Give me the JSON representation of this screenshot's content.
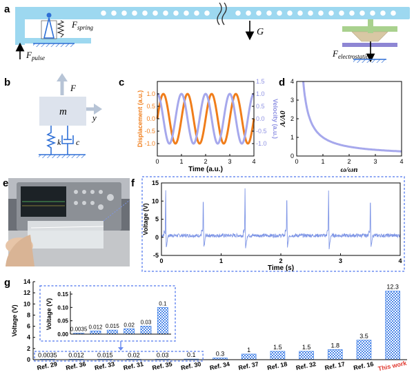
{
  "panels": {
    "a": {
      "letter": "a",
      "labels": {
        "spring_force": "F",
        "spring_sub": "spring",
        "gravity": "G",
        "pulse_force": "F",
        "pulse_sub": "pulse",
        "electro_force": "F",
        "electro_sub": "electrostatic"
      },
      "colors": {
        "beam": "#9dd8f0",
        "hole": "#ffffff",
        "green": "#a9d18e",
        "purple": "#8e86d4",
        "tan": "#d8c8a4"
      }
    },
    "b": {
      "letter": "b",
      "labels": {
        "force": "F",
        "mass": "m",
        "y": "y",
        "k": "k",
        "c": "c"
      },
      "colors": {
        "mass": "#dde3ed",
        "spring": "#2e6fd6",
        "arrow": "#b7c4d6"
      }
    },
    "c": {
      "letter": "c"
    },
    "d": {
      "letter": "d"
    },
    "e": {
      "letter": "e"
    },
    "f": {
      "letter": "f"
    },
    "g": {
      "letter": "g"
    }
  },
  "chart_data": [
    {
      "panel": "c",
      "type": "line",
      "xlabel": "Time (a.u.)",
      "ylabel": "Displacement (a.u.)",
      "y2label": "Velocity (a.u.)",
      "xlim": [
        0,
        4
      ],
      "ylim": [
        -1.5,
        1.5
      ],
      "y2lim": [
        -1.5,
        1.5
      ],
      "xticks": [
        0,
        1,
        2,
        3,
        4
      ],
      "yticks": [
        -1.0,
        -0.5,
        0.0,
        0.5,
        1.0
      ],
      "ytick_labels": [
        "-1.0",
        "-0.5",
        "0.0",
        "0.5",
        "1.0"
      ],
      "y2ticks": [
        -1.0,
        -0.5,
        0.0,
        0.5,
        1.0,
        1.5
      ],
      "y2tick_labels": [
        "-1.0",
        "-0.5",
        "0.0",
        "0.5",
        "1.0",
        "1.5"
      ],
      "series": [
        {
          "axis": "left",
          "function": "sin",
          "period": 1.0,
          "amplitude": 1.0,
          "phase": 0,
          "color": "#f07d1a"
        },
        {
          "axis": "right",
          "function": "cos",
          "period": 1.0,
          "amplitude": 1.0,
          "phase": 0,
          "color": "#a6a8ec"
        }
      ]
    },
    {
      "panel": "d",
      "type": "line",
      "xlabel": "ω/ωn",
      "ylabel": "A/A0",
      "xlim": [
        0,
        4
      ],
      "ylim": [
        0,
        4
      ],
      "xticks": [
        0,
        1,
        2,
        3,
        4
      ],
      "yticks": [
        0,
        1,
        2,
        3,
        4
      ],
      "series": [
        {
          "function": "1/x",
          "color": "#a6a8ec"
        }
      ]
    },
    {
      "panel": "f",
      "type": "line",
      "xlabel": "Time (s)",
      "ylabel": "Voltage (V)",
      "xlim": [
        0,
        4
      ],
      "ylim": [
        -5,
        15
      ],
      "xticks": [
        0,
        1,
        2,
        3,
        4
      ],
      "yticks": [
        -5,
        0,
        5,
        10,
        15
      ],
      "color": "#7f96e6",
      "baseline": 0.5,
      "noise": 0.5,
      "spikes": [
        {
          "t": 0.07,
          "v": 14.5
        },
        {
          "t": 0.7,
          "v": 12.7
        },
        {
          "t": 1.4,
          "v": 13.0
        },
        {
          "t": 2.1,
          "v": 13.3
        },
        {
          "t": 2.8,
          "v": 12.4
        },
        {
          "t": 3.5,
          "v": 12.4
        }
      ]
    },
    {
      "panel": "g",
      "type": "bar",
      "ylabel": "Voltage (V)",
      "ylim": [
        0,
        14
      ],
      "yticks": [
        0,
        2,
        4,
        6,
        8,
        10,
        12,
        14
      ],
      "categories": [
        "Ref. 29",
        "Ref. 36",
        "Ref. 33",
        "Ref. 31",
        "Ref. 35",
        "Ref. 30",
        "Ref. 34",
        "Ref. 37",
        "Ref. 18",
        "Ref. 32",
        "Ref. 17",
        "Ref. 16",
        "This work"
      ],
      "values": [
        0.0035,
        0.012,
        0.015,
        0.02,
        0.03,
        0.1,
        0.3,
        1,
        1.5,
        1.5,
        1.8,
        3.5,
        12.3
      ],
      "value_labels": [
        "0.0035",
        "0.012",
        "0.015",
        "0.02",
        "0.03",
        "0.1",
        "0.3",
        "1",
        "1.5",
        "1.5",
        "1.8",
        "3.5",
        "12.3"
      ],
      "highlight_color": "#e0382e",
      "bar_color": "#4a86e8",
      "inset": {
        "ylabel": "Voltage (V)",
        "ylim": [
          0,
          0.15
        ],
        "yticks": [
          0.0,
          0.05,
          0.1,
          0.15
        ],
        "ytick_labels": [
          "0.00",
          "0.05",
          "0.10",
          "0.15"
        ],
        "categories": [
          "Ref. 29",
          "Ref. 36",
          "Ref. 33",
          "Ref. 31",
          "Ref. 35",
          "Ref. 30"
        ],
        "values": [
          0.0035,
          0.012,
          0.015,
          0.02,
          0.03,
          0.1
        ],
        "value_labels": [
          "0.0035",
          "0.012",
          "0.015",
          "0.02",
          "0.03",
          "0.1"
        ]
      }
    }
  ]
}
